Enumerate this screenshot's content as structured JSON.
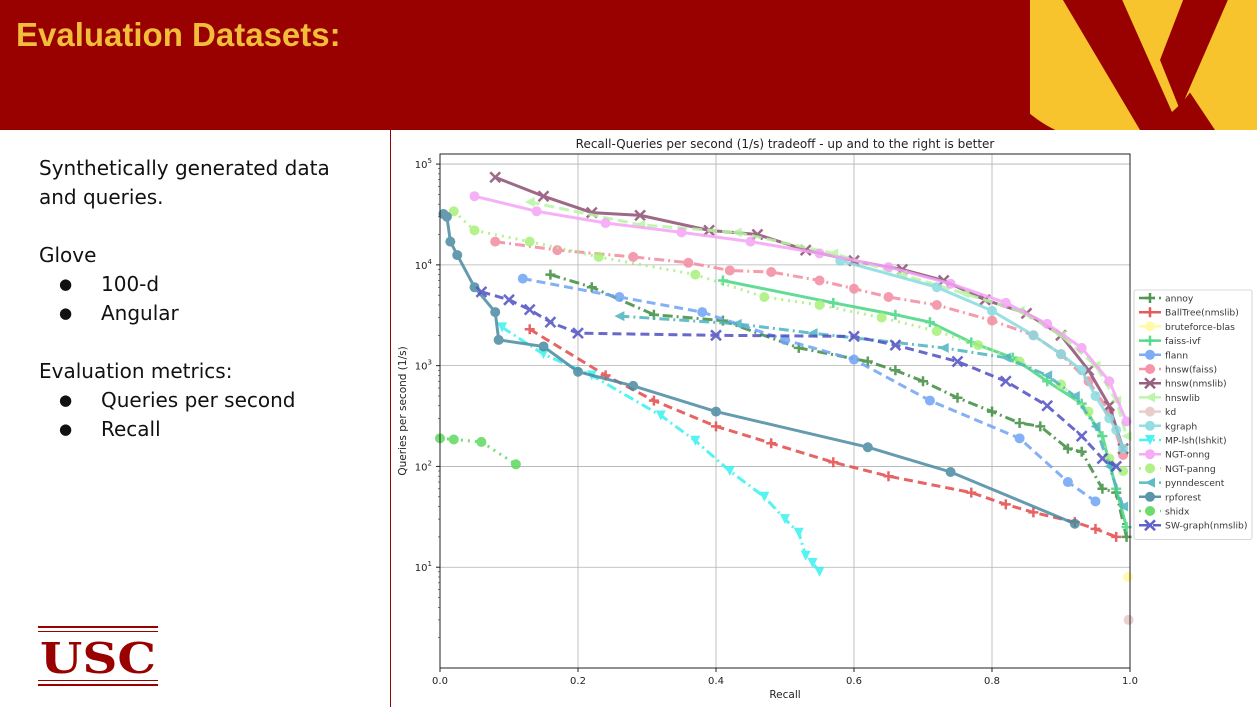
{
  "slide": {
    "title": "Evaluation Datasets:",
    "text": {
      "line1": "Synthetically generated data",
      "line2": "and queries.",
      "dataset_heading": "Glove",
      "dataset_items": [
        "100-d",
        "Angular"
      ],
      "metrics_heading": "Evaluation metrics:",
      "metric_items": [
        "Queries per second",
        "Recall"
      ],
      "bullet": "●"
    },
    "logo_text": "USC",
    "colors": {
      "header": "#990000",
      "title": "#f1bd3a",
      "logo_v": "#f7c42e"
    }
  },
  "chart_data": {
    "type": "line",
    "title": "Recall-Queries per second (1/s) tradeoff - up and to the right is better",
    "xlabel": "Recall",
    "ylabel": "Queries per second (1/s)",
    "xlim": [
      0.0,
      1.0
    ],
    "ylim_log10": [
      0.0,
      5.1
    ],
    "yscale": "log",
    "grid": true,
    "legend_position": "right",
    "xticks": [
      "0.0",
      "0.2",
      "0.4",
      "0.6",
      "0.8",
      "1.0"
    ],
    "yticks": [
      {
        "base": "10",
        "exp": "1",
        "value": 10
      },
      {
        "base": "10",
        "exp": "2",
        "value": 100
      },
      {
        "base": "10",
        "exp": "3",
        "value": 1000
      },
      {
        "base": "10",
        "exp": "4",
        "value": 10000
      },
      {
        "base": "10",
        "exp": "5",
        "value": 100000
      }
    ],
    "series": [
      {
        "name": "annoy",
        "color": "#3f8c3f",
        "dash": "10,4,2,4",
        "marker": "plus",
        "x": [
          0.16,
          0.22,
          0.31,
          0.41,
          0.52,
          0.62,
          0.66,
          0.7,
          0.75,
          0.8,
          0.84,
          0.87,
          0.91,
          0.93,
          0.96,
          0.98,
          0.995
        ],
        "y": [
          8000,
          6000,
          3200,
          2800,
          1500,
          1100,
          900,
          700,
          480,
          350,
          270,
          250,
          150,
          140,
          60,
          55,
          20
        ]
      },
      {
        "name": "BallTree(nmslib)",
        "color": "#e34a4a",
        "dash": "9,5",
        "marker": "plus",
        "x": [
          0.13,
          0.24,
          0.31,
          0.4,
          0.48,
          0.57,
          0.65,
          0.77,
          0.82,
          0.86,
          0.92,
          0.95,
          0.98
        ],
        "y": [
          2300,
          800,
          450,
          250,
          170,
          110,
          80,
          55,
          42,
          35,
          28,
          24,
          20
        ]
      },
      {
        "name": "bruteforce-blas",
        "color": "#fffa9e",
        "dash": "",
        "marker": "circle",
        "x": [
          0.997
        ],
        "y": [
          8
        ]
      },
      {
        "name": "faiss-ivf",
        "color": "#47d782",
        "dash": "",
        "marker": "plus",
        "x": [
          0.41,
          0.57,
          0.66,
          0.71,
          0.77,
          0.83,
          0.88,
          0.93,
          0.96,
          0.98,
          0.995
        ],
        "y": [
          7000,
          4200,
          3200,
          2700,
          1700,
          1200,
          700,
          420,
          200,
          60,
          25
        ]
      },
      {
        "name": "flann",
        "color": "#6fa3f5",
        "dash": "9,5",
        "marker": "circle",
        "x": [
          0.12,
          0.26,
          0.38,
          0.5,
          0.6,
          0.71,
          0.84,
          0.91,
          0.95
        ],
        "y": [
          7300,
          4800,
          3400,
          1800,
          1150,
          450,
          190,
          70,
          45
        ]
      },
      {
        "name": "hnsw(faiss)",
        "color": "#f48aa0",
        "dash": "10,4,2,4",
        "marker": "circle",
        "x": [
          0.08,
          0.17,
          0.28,
          0.36,
          0.42,
          0.48,
          0.55,
          0.6,
          0.65,
          0.72,
          0.8,
          0.86,
          0.9,
          0.94,
          0.97,
          0.99
        ],
        "y": [
          17000,
          14000,
          12000,
          10500,
          8800,
          8500,
          7000,
          5800,
          4800,
          4000,
          2800,
          2000,
          1300,
          700,
          350,
          130
        ]
      },
      {
        "name": "hnsw(nmslib)",
        "color": "#8c4f72",
        "dash": "",
        "marker": "x",
        "x": [
          0.08,
          0.15,
          0.22,
          0.29,
          0.39,
          0.46,
          0.53,
          0.6,
          0.67,
          0.73,
          0.79,
          0.85,
          0.9,
          0.94,
          0.97,
          0.99
        ],
        "y": [
          74000,
          48000,
          33000,
          31000,
          22000,
          20000,
          14000,
          11000,
          9000,
          7000,
          4500,
          3300,
          2000,
          900,
          400,
          150
        ]
      },
      {
        "name": "hnswlib",
        "color": "#b6f5a3",
        "dash": "10,5",
        "marker": "tri-left",
        "x": [
          0.13,
          0.29,
          0.43,
          0.57,
          0.67,
          0.76,
          0.84,
          0.9,
          0.95,
          0.98,
          0.995
        ],
        "y": [
          42000,
          25000,
          21000,
          13000,
          8000,
          5200,
          3500,
          2000,
          1000,
          450,
          200
        ]
      },
      {
        "name": "kd",
        "color": "#e7c8c8",
        "dash": "",
        "marker": "circle",
        "x": [
          0.998
        ],
        "y": [
          3
        ]
      },
      {
        "name": "kgraph",
        "color": "#88dbe0",
        "dash": "",
        "marker": "circle",
        "x": [
          0.58,
          0.72,
          0.8,
          0.86,
          0.9,
          0.93,
          0.95,
          0.97,
          0.98,
          0.99
        ],
        "y": [
          11000,
          6000,
          3500,
          2000,
          1300,
          900,
          500,
          300,
          230,
          150
        ]
      },
      {
        "name": "MP-lsh(lshkit)",
        "color": "#38f2ef",
        "dash": "10,4,2,4",
        "marker": "tri-down",
        "x": [
          0.09,
          0.15,
          0.22,
          0.32,
          0.37,
          0.42,
          0.47,
          0.5,
          0.52,
          0.53,
          0.54,
          0.55
        ],
        "y": [
          2400,
          1300,
          800,
          320,
          180,
          90,
          50,
          30,
          22,
          13,
          11,
          9
        ]
      },
      {
        "name": "NGT-onng",
        "color": "#f5a3f5",
        "dash": "",
        "marker": "circle",
        "x": [
          0.05,
          0.14,
          0.24,
          0.35,
          0.45,
          0.55,
          0.65,
          0.74,
          0.82,
          0.88,
          0.93,
          0.97,
          0.995
        ],
        "y": [
          48000,
          34000,
          26000,
          21000,
          17000,
          13000,
          9500,
          6500,
          4200,
          2600,
          1500,
          700,
          280
        ]
      },
      {
        "name": "NGT-panng",
        "color": "#a8f07a",
        "dash": "2,5",
        "marker": "circle",
        "x": [
          0.02,
          0.05,
          0.13,
          0.23,
          0.37,
          0.47,
          0.55,
          0.64,
          0.72,
          0.78,
          0.84,
          0.9,
          0.94,
          0.97,
          0.99
        ],
        "y": [
          34000,
          22000,
          17000,
          12000,
          8000,
          4800,
          4000,
          3000,
          2200,
          1600,
          1100,
          650,
          350,
          120,
          90
        ]
      },
      {
        "name": "pynndescent",
        "color": "#4cb5bf",
        "dash": "10,4,2,4",
        "marker": "tri-left",
        "x": [
          0.26,
          0.43,
          0.54,
          0.73,
          0.82,
          0.88,
          0.92,
          0.95,
          0.97,
          0.99
        ],
        "y": [
          3100,
          2600,
          2100,
          1500,
          1200,
          800,
          500,
          250,
          100,
          40
        ]
      },
      {
        "name": "rpforest",
        "color": "#4a8aa1",
        "dash": "",
        "marker": "circle",
        "x": [
          0.005,
          0.01,
          0.015,
          0.025,
          0.05,
          0.08,
          0.085,
          0.15,
          0.2,
          0.28,
          0.4,
          0.62,
          0.74,
          0.92
        ],
        "y": [
          32000,
          30000,
          17000,
          12500,
          6000,
          3400,
          1800,
          1550,
          870,
          630,
          350,
          155,
          88,
          27
        ]
      },
      {
        "name": "shidx",
        "color": "#5ed95e",
        "dash": "2,5",
        "marker": "circle",
        "x": [
          0.0,
          0.02,
          0.06,
          0.11
        ],
        "y": [
          190,
          185,
          175,
          105
        ]
      },
      {
        "name": "SW-graph(nmslib)",
        "color": "#4f4fc2",
        "dash": "9,5",
        "marker": "x",
        "x": [
          0.06,
          0.1,
          0.13,
          0.16,
          0.2,
          0.4,
          0.6,
          0.66,
          0.75,
          0.82,
          0.88,
          0.93,
          0.96,
          0.98
        ],
        "y": [
          5400,
          4500,
          3600,
          2700,
          2100,
          2000,
          1950,
          1600,
          1100,
          700,
          400,
          200,
          120,
          100
        ]
      }
    ]
  }
}
